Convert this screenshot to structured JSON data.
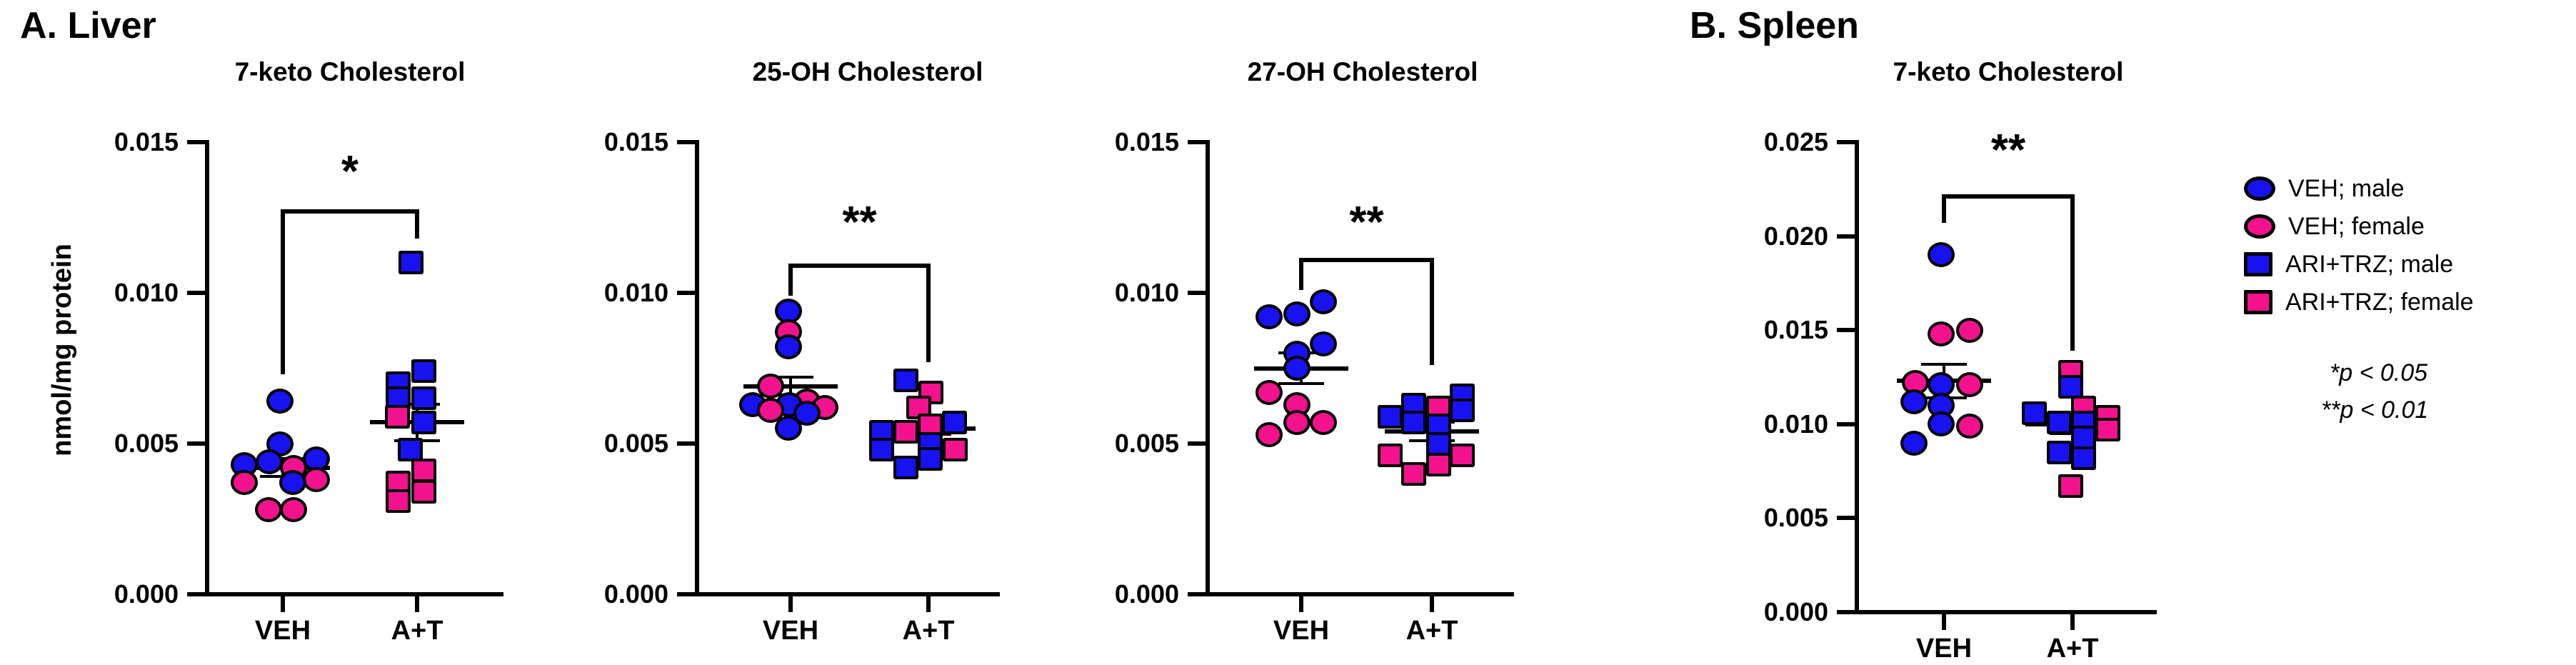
{
  "figure": {
    "section_a": "A. Liver",
    "section_b": "B. Spleen",
    "y_axis_label": "nmol/mg protein"
  },
  "colors": {
    "male_blue": "#1812F0",
    "female_pink": "#F4118E",
    "outline": "#000000",
    "axis": "#000000"
  },
  "legend": {
    "items": [
      {
        "marker": "circle",
        "color_key": "male_blue",
        "label": "VEH; male"
      },
      {
        "marker": "circle",
        "color_key": "female_pink",
        "label": "VEH; female"
      },
      {
        "marker": "square",
        "color_key": "male_blue",
        "label": "ARI+TRZ; male"
      },
      {
        "marker": "square",
        "color_key": "female_pink",
        "label": "ARI+TRZ; female"
      }
    ],
    "notes": [
      "*p < 0.05",
      "**p < 0.01"
    ]
  },
  "chart_data": [
    {
      "type": "scatter",
      "section": "A. Liver",
      "title": "7-keto Cholesterol",
      "ylabel": "nmol/mg protein",
      "ylim": [
        0,
        0.015
      ],
      "yticks": [
        {
          "label": "0.015",
          "v": 0.015
        },
        {
          "label": "0.010",
          "v": 0.01
        },
        {
          "label": "0.005",
          "v": 0.005
        },
        {
          "label": "0.000",
          "v": 0
        }
      ],
      "significance": {
        "label": "*",
        "p_note": "p < 0.05",
        "bar_v": 0.0127,
        "left_v": 0.0073,
        "right_v": 0.0118,
        "star_v": 0.0138
      },
      "groups": [
        {
          "name": "VEH",
          "marker": "circle",
          "mean": 0.0042,
          "sem": 0.0003,
          "points": [
            {
              "v": 0.0064,
              "sex": "male",
              "dx": -4
            },
            {
              "v": 0.005,
              "sex": "male",
              "dx": -4
            },
            {
              "v": 0.0045,
              "sex": "male",
              "dx": 47
            },
            {
              "v": 0.0044,
              "sex": "male",
              "dx": -19
            },
            {
              "v": 0.0043,
              "sex": "male",
              "dx": -54
            },
            {
              "v": 0.0042,
              "sex": "female",
              "dx": 15
            },
            {
              "v": 0.0038,
              "sex": "female",
              "dx": 47
            },
            {
              "v": 0.0037,
              "sex": "female",
              "dx": -54
            },
            {
              "v": 0.0037,
              "sex": "male",
              "dx": 14
            },
            {
              "v": 0.0028,
              "sex": "female",
              "dx": -20
            },
            {
              "v": 0.0028,
              "sex": "female",
              "dx": 15
            }
          ]
        },
        {
          "name": "A+T",
          "marker": "square",
          "mean": 0.0057,
          "sem": 0.0006,
          "points": [
            {
              "v": 0.011,
              "sex": "male",
              "dx": -9
            },
            {
              "v": 0.0074,
              "sex": "male",
              "dx": 9
            },
            {
              "v": 0.007,
              "sex": "male",
              "dx": -27
            },
            {
              "v": 0.0065,
              "sex": "male",
              "dx": 9
            },
            {
              "v": 0.0065,
              "sex": "male",
              "dx": -27
            },
            {
              "v": 0.0059,
              "sex": "female",
              "dx": -28
            },
            {
              "v": 0.0057,
              "sex": "male",
              "dx": 9
            },
            {
              "v": 0.0048,
              "sex": "male",
              "dx": -10
            },
            {
              "v": 0.0041,
              "sex": "female",
              "dx": 9
            },
            {
              "v": 0.0037,
              "sex": "female",
              "dx": -27
            },
            {
              "v": 0.0034,
              "sex": "female",
              "dx": 9
            },
            {
              "v": 0.0031,
              "sex": "female",
              "dx": -27
            }
          ]
        }
      ]
    },
    {
      "type": "scatter",
      "section": "A. Liver",
      "title": "25-OH Cholesterol",
      "ylabel": "nmol/mg protein",
      "ylim": [
        0,
        0.015
      ],
      "yticks": [
        {
          "label": "0.015",
          "v": 0.015
        },
        {
          "label": "0.010",
          "v": 0.01
        },
        {
          "label": "0.005",
          "v": 0.005
        },
        {
          "label": "0.000",
          "v": 0
        }
      ],
      "significance": {
        "label": "**",
        "p_note": "p < 0.01",
        "bar_v": 0.0109,
        "left_v": 0.0099,
        "right_v": 0.0077,
        "star_v": 0.0121
      },
      "groups": [
        {
          "name": "VEH",
          "marker": "circle",
          "mean": 0.0069,
          "sem": 0.0003,
          "points": [
            {
              "v": 0.0094,
              "sex": "male",
              "dx": -3
            },
            {
              "v": 0.0087,
              "sex": "female",
              "dx": -3
            },
            {
              "v": 0.0082,
              "sex": "male",
              "dx": -3
            },
            {
              "v": 0.0069,
              "sex": "female",
              "dx": -28
            },
            {
              "v": 0.0064,
              "sex": "female",
              "dx": 23
            },
            {
              "v": 0.0063,
              "sex": "male",
              "dx": -53
            },
            {
              "v": 0.0063,
              "sex": "male",
              "dx": -2
            },
            {
              "v": 0.0062,
              "sex": "female",
              "dx": 48
            },
            {
              "v": 0.0061,
              "sex": "female",
              "dx": -28
            },
            {
              "v": 0.006,
              "sex": "male",
              "dx": 23
            },
            {
              "v": 0.0055,
              "sex": "male",
              "dx": -3
            }
          ]
        },
        {
          "name": "A+T",
          "marker": "square",
          "mean": 0.0055,
          "sem": 0.0002,
          "points": [
            {
              "v": 0.0071,
              "sex": "male",
              "dx": -32
            },
            {
              "v": 0.0067,
              "sex": "female",
              "dx": 3
            },
            {
              "v": 0.0062,
              "sex": "female",
              "dx": -14
            },
            {
              "v": 0.0057,
              "sex": "male",
              "dx": 36
            },
            {
              "v": 0.0056,
              "sex": "female",
              "dx": 2
            },
            {
              "v": 0.0054,
              "sex": "male",
              "dx": -66
            },
            {
              "v": 0.0054,
              "sex": "female",
              "dx": -32
            },
            {
              "v": 0.005,
              "sex": "male",
              "dx": 2
            },
            {
              "v": 0.0048,
              "sex": "male",
              "dx": -66
            },
            {
              "v": 0.0048,
              "sex": "female",
              "dx": 37
            },
            {
              "v": 0.0045,
              "sex": "male",
              "dx": 2
            },
            {
              "v": 0.0042,
              "sex": "male",
              "dx": -32
            }
          ]
        }
      ]
    },
    {
      "type": "scatter",
      "section": "A. Liver",
      "title": "27-OH Cholesterol",
      "ylabel": "nmol/mg protein",
      "ylim": [
        0,
        0.015
      ],
      "yticks": [
        {
          "label": "0.015",
          "v": 0.015
        },
        {
          "label": "0.010",
          "v": 0.01
        },
        {
          "label": "0.005",
          "v": 0.005
        },
        {
          "label": "0.000",
          "v": 0
        }
      ],
      "significance": {
        "label": "**",
        "p_note": "p < 0.01",
        "bar_v": 0.0111,
        "left_v": 0.0101,
        "right_v": 0.0076,
        "star_v": 0.0121
      },
      "groups": [
        {
          "name": "VEH",
          "marker": "circle",
          "mean": 0.0075,
          "sem": 0.0005,
          "points": [
            {
              "v": 0.0097,
              "sex": "male",
              "dx": 31
            },
            {
              "v": 0.0093,
              "sex": "male",
              "dx": -6
            },
            {
              "v": 0.0092,
              "sex": "male",
              "dx": -45
            },
            {
              "v": 0.0083,
              "sex": "male",
              "dx": 31
            },
            {
              "v": 0.008,
              "sex": "male",
              "dx": -6
            },
            {
              "v": 0.0075,
              "sex": "male",
              "dx": -6
            },
            {
              "v": 0.0067,
              "sex": "female",
              "dx": -45
            },
            {
              "v": 0.0063,
              "sex": "female",
              "dx": -6
            },
            {
              "v": 0.0057,
              "sex": "female",
              "dx": -6
            },
            {
              "v": 0.0057,
              "sex": "female",
              "dx": 31
            },
            {
              "v": 0.0053,
              "sex": "female",
              "dx": -45
            }
          ]
        },
        {
          "name": "A+T",
          "marker": "square",
          "mean": 0.0054,
          "sem": 0.0003,
          "points": [
            {
              "v": 0.0066,
              "sex": "male",
              "dx": 42
            },
            {
              "v": 0.0063,
              "sex": "male",
              "dx": -26
            },
            {
              "v": 0.0062,
              "sex": "female",
              "dx": 9
            },
            {
              "v": 0.0061,
              "sex": "male",
              "dx": 42
            },
            {
              "v": 0.0059,
              "sex": "male",
              "dx": -59
            },
            {
              "v": 0.0057,
              "sex": "male",
              "dx": -26
            },
            {
              "v": 0.0056,
              "sex": "male",
              "dx": 9
            },
            {
              "v": 0.005,
              "sex": "male",
              "dx": 9
            },
            {
              "v": 0.0046,
              "sex": "female",
              "dx": -59
            },
            {
              "v": 0.0046,
              "sex": "female",
              "dx": 42
            },
            {
              "v": 0.0043,
              "sex": "female",
              "dx": 9
            },
            {
              "v": 0.004,
              "sex": "female",
              "dx": -26
            }
          ]
        }
      ]
    },
    {
      "type": "scatter",
      "section": "B. Spleen",
      "title": "7-keto Cholesterol",
      "ylabel": "nmol/mg protein",
      "ylim": [
        0,
        0.025
      ],
      "yticks": [
        {
          "label": "0.025",
          "v": 0.025
        },
        {
          "label": "0.020",
          "v": 0.02
        },
        {
          "label": "0.015",
          "v": 0.015
        },
        {
          "label": "0.010",
          "v": 0.01
        },
        {
          "label": "0.005",
          "v": 0.005
        },
        {
          "label": "0.000",
          "v": 0
        }
      ],
      "significance": {
        "label": "**",
        "p_note": "p < 0.01",
        "bar_v": 0.0221,
        "left_v": 0.0207,
        "right_v": 0.0139,
        "star_v": 0.0242
      },
      "groups": [
        {
          "name": "VEH",
          "marker": "circle",
          "mean": 0.0123,
          "sem": 0.0009,
          "points": [
            {
              "v": 0.019,
              "sex": "male",
              "dx": -4
            },
            {
              "v": 0.015,
              "sex": "female",
              "dx": 36
            },
            {
              "v": 0.0148,
              "sex": "female",
              "dx": -4
            },
            {
              "v": 0.0122,
              "sex": "female",
              "dx": -40
            },
            {
              "v": 0.0121,
              "sex": "male",
              "dx": -4
            },
            {
              "v": 0.0121,
              "sex": "female",
              "dx": 36
            },
            {
              "v": 0.0112,
              "sex": "male",
              "dx": -42
            },
            {
              "v": 0.011,
              "sex": "male",
              "dx": -4
            },
            {
              "v": 0.01,
              "sex": "male",
              "dx": -4
            },
            {
              "v": 0.0099,
              "sex": "female",
              "dx": 36
            },
            {
              "v": 0.009,
              "sex": "male",
              "dx": -42
            }
          ]
        },
        {
          "name": "A+T",
          "marker": "square",
          "mean": 0.01,
          "sem": 0.0005,
          "points": [
            {
              "v": 0.0128,
              "sex": "female",
              "dx": -3
            },
            {
              "v": 0.012,
              "sex": "male",
              "dx": -3
            },
            {
              "v": 0.0109,
              "sex": "female",
              "dx": 15
            },
            {
              "v": 0.0106,
              "sex": "male",
              "dx": -54
            },
            {
              "v": 0.0104,
              "sex": "female",
              "dx": 49
            },
            {
              "v": 0.0101,
              "sex": "male",
              "dx": -19
            },
            {
              "v": 0.0101,
              "sex": "male",
              "dx": 15
            },
            {
              "v": 0.0097,
              "sex": "female",
              "dx": 49
            },
            {
              "v": 0.0093,
              "sex": "male",
              "dx": 15
            },
            {
              "v": 0.0085,
              "sex": "male",
              "dx": -19
            },
            {
              "v": 0.0082,
              "sex": "male",
              "dx": 15
            },
            {
              "v": 0.0067,
              "sex": "female",
              "dx": -3
            }
          ]
        }
      ]
    }
  ]
}
